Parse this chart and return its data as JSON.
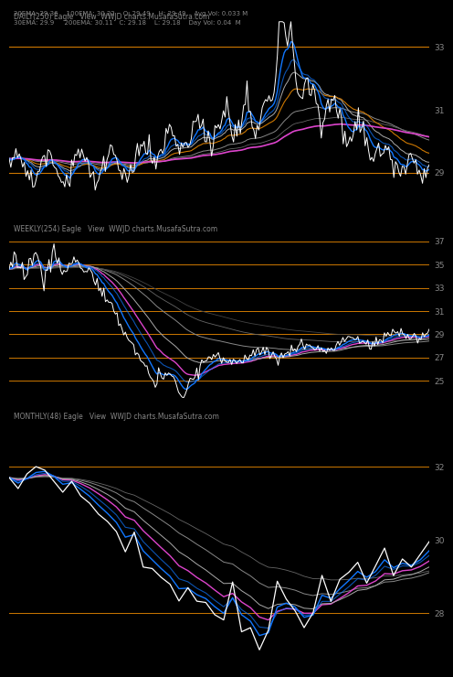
{
  "background_color": "#000000",
  "title_top": "20EMA: 29.36    100EMA: 30.22    O: 29.49    H: 29.49    Avg Vol: 0.033 M",
  "title_top2": "30EMA: 29.9     200EMA: 30.11   C: 29.18    L: 29.18    Day Vol: 0.04  M",
  "label_daily": "DAILY(250) Eagle   View  WWJD charts.MusafaSutra.com",
  "label_weekly": "WEEKLY(254) Eagle   View  WWJD charts.MusafaSutra.com",
  "label_monthly": "MONTHLY(48) Eagle   View  WWJD charts.MusafaSutra.com",
  "daily_yticks": [
    33,
    31,
    29
  ],
  "weekly_yticks": [
    37,
    35,
    33,
    31,
    29,
    27,
    25
  ],
  "monthly_yticks": [
    32,
    30,
    28
  ],
  "daily_ylim": [
    27.8,
    34.2
  ],
  "weekly_ylim": [
    23.5,
    38.5
  ],
  "monthly_ylim": [
    26.5,
    33.5
  ],
  "orange_color": "#cc7700",
  "orange2_color": "#cc5500",
  "white_color": "#ffffff",
  "blue_color": "#1177ff",
  "magenta_color": "#dd44cc",
  "gray1_color": "#aaaaaa",
  "gray2_color": "#888888",
  "gray3_color": "#666666",
  "gray4_color": "#444444",
  "teal_color": "#009999",
  "text_color": "#888888"
}
